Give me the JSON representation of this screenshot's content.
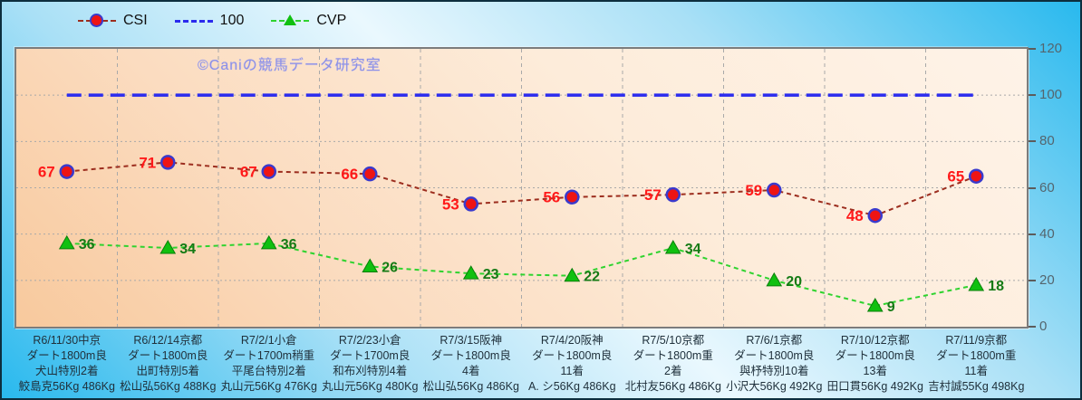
{
  "watermark": "©Caniの競馬データ研究室",
  "colors": {
    "background_edge": "#29b9ee",
    "background_center": "#eaf8fe",
    "plot_fill_dark": "#f8c99d",
    "plot_fill_light": "#fef3e8",
    "plot_border": "#7c7c7c",
    "gridline": "#a9a9a9",
    "axis_label": "#54656e",
    "xlabel_text": "#20313c",
    "watermark_text": "#8d90e6"
  },
  "chart_data": {
    "type": "line",
    "title": "",
    "xlabel": "",
    "ylabel": "",
    "ylim": [
      0,
      120
    ],
    "yticks": [
      0,
      20,
      40,
      60,
      80,
      100,
      120
    ],
    "grid": true,
    "legend_position": "top",
    "series": [
      {
        "name": "CSI",
        "marker": "circle",
        "line_color": "#9c2d1e",
        "marker_fill": "#ee1414",
        "marker_stroke": "#3a3acd",
        "label_color": "#ff1a1a",
        "label_side": "left",
        "values": [
          67,
          71,
          67,
          66,
          53,
          56,
          57,
          59,
          48,
          65
        ]
      },
      {
        "name": "100",
        "marker": "none",
        "line_color": "#2b2bee",
        "label_side": "none",
        "values": [
          100,
          100,
          100,
          100,
          100,
          100,
          100,
          100,
          100,
          100
        ]
      },
      {
        "name": "CVP",
        "marker": "triangle",
        "line_color": "#2fd32f",
        "marker_fill": "#10c010",
        "marker_stroke": "#0a800a",
        "label_color": "#157a15",
        "label_side": "right",
        "values": [
          36,
          34,
          36,
          26,
          23,
          22,
          34,
          20,
          9,
          18
        ]
      }
    ],
    "categories": [
      [
        "R6/11/30中京",
        "ダート1800m良",
        "犬山特別2着",
        "鮫島克56Kg 486Kg"
      ],
      [
        "R6/12/14京都",
        "ダート1800m良",
        "出町特別5着",
        "松山弘56Kg 488Kg"
      ],
      [
        "R7/2/1小倉",
        "ダート1700m稍重",
        "平尾台特別2着",
        "丸山元56Kg 476Kg"
      ],
      [
        "R7/2/23小倉",
        "ダート1700m良",
        "和布刈特別4着",
        "丸山元56Kg 480Kg"
      ],
      [
        "R7/3/15阪神",
        "ダート1800m良",
        "4着",
        "松山弘56Kg 486Kg"
      ],
      [
        "R7/4/20阪神",
        "ダート1800m良",
        "11着",
        "A. シ56Kg 486Kg"
      ],
      [
        "R7/5/10京都",
        "ダート1800m重",
        "2着",
        "北村友56Kg 486Kg"
      ],
      [
        "R7/6/1京都",
        "ダート1800m良",
        "與杼特別10着",
        "小沢大56Kg 492Kg"
      ],
      [
        "R7/10/12京都",
        "ダート1800m良",
        "13着",
        "田口貫56Kg 492Kg"
      ],
      [
        "R7/11/9京都",
        "ダート1800m重",
        "11着",
        "吉村誠55Kg 498Kg"
      ]
    ]
  }
}
